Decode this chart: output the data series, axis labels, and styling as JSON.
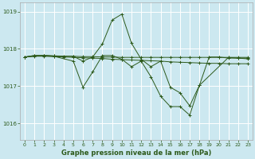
{
  "background_color": "#cce8f0",
  "grid_color": "#ffffff",
  "line_color": "#2d5a1b",
  "title": "Graphe pression niveau de la mer (hPa)",
  "xlim": [
    -0.5,
    23.5
  ],
  "ylim": [
    1015.55,
    1019.25
  ],
  "yticks": [
    1016,
    1017,
    1018,
    1019
  ],
  "xticks": [
    0,
    1,
    2,
    3,
    4,
    5,
    6,
    7,
    8,
    9,
    10,
    11,
    12,
    13,
    14,
    15,
    16,
    17,
    18,
    19,
    20,
    21,
    22,
    23
  ],
  "series": [
    {
      "x": [
        0,
        1,
        2,
        3,
        4,
        5,
        6,
        7,
        8,
        9,
        10,
        11,
        12,
        13,
        14,
        15,
        16,
        17,
        18,
        19,
        20,
        21,
        22,
        23
      ],
      "y": [
        1017.78,
        1017.82,
        1017.82,
        1017.81,
        1017.8,
        1017.8,
        1017.79,
        1017.79,
        1017.78,
        1017.78,
        1017.77,
        1017.77,
        1017.77,
        1017.77,
        1017.77,
        1017.77,
        1017.77,
        1017.77,
        1017.77,
        1017.77,
        1017.77,
        1017.77,
        1017.77,
        1017.77
      ]
    },
    {
      "x": [
        0,
        1,
        2,
        3,
        4,
        5,
        6,
        7,
        8,
        9,
        10,
        11,
        12,
        13,
        14,
        15,
        16,
        17,
        18,
        19,
        20,
        21,
        22,
        23
      ],
      "y": [
        1017.78,
        1017.8,
        1017.8,
        1017.79,
        1017.78,
        1017.77,
        1017.76,
        1017.75,
        1017.74,
        1017.72,
        1017.71,
        1017.7,
        1017.69,
        1017.68,
        1017.67,
        1017.65,
        1017.64,
        1017.63,
        1017.62,
        1017.61,
        1017.61,
        1017.6,
        1017.6,
        1017.6
      ]
    },
    {
      "x": [
        0,
        2,
        3,
        5,
        6,
        7,
        8,
        9,
        10,
        11,
        12,
        13,
        14,
        15,
        16,
        17,
        18,
        21,
        22,
        23
      ],
      "y": [
        1017.78,
        1017.82,
        1017.81,
        1017.8,
        1017.67,
        1017.78,
        1018.13,
        1018.77,
        1018.93,
        1018.15,
        1017.72,
        1017.52,
        1017.67,
        1016.97,
        1016.82,
        1016.47,
        1017.02,
        1017.77,
        1017.75,
        1017.75
      ]
    },
    {
      "x": [
        0,
        1,
        2,
        3,
        5,
        6,
        7,
        8,
        9,
        10,
        11,
        12,
        13,
        14,
        15,
        16,
        17,
        18,
        19,
        20,
        21,
        22,
        23
      ],
      "y": [
        1017.78,
        1017.82,
        1017.82,
        1017.8,
        1017.67,
        1016.97,
        1017.38,
        1017.82,
        1017.82,
        1017.72,
        1017.52,
        1017.67,
        1017.25,
        1016.73,
        1016.45,
        1016.45,
        1016.22,
        1017.02,
        1017.78,
        1017.78,
        1017.75,
        1017.75,
        1017.73
      ]
    }
  ]
}
